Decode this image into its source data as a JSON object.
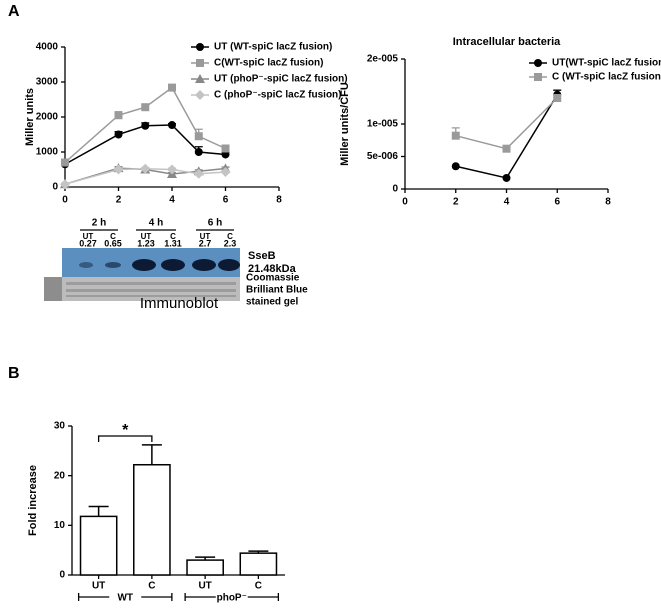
{
  "panels": [
    "A",
    "B"
  ],
  "chart_data": [
    {
      "type": "line",
      "ylabel": "Miller units",
      "x": [
        0,
        2,
        3,
        4,
        5,
        6
      ],
      "xlim": [
        0,
        8
      ],
      "xticks": [
        0,
        2,
        4,
        6,
        8
      ],
      "ylim": [
        0,
        4000
      ],
      "yticks": [
        0,
        1000,
        2000,
        3000,
        4000
      ],
      "legend": "upper right",
      "series": [
        {
          "name": "UT (WT-spiC lacZ fusion)",
          "color": "#000000",
          "marker": "circle",
          "values": [
            650,
            1500,
            1750,
            1770,
            1000,
            930
          ],
          "errors": [
            40,
            80,
            80,
            40,
            150,
            60
          ]
        },
        {
          "name": "C(WT-spiC lacZ fusion)",
          "color": "#9a9a9a",
          "marker": "square",
          "values": [
            700,
            2050,
            2280,
            2840,
            1450,
            1100
          ],
          "errors": [
            50,
            100,
            80,
            80,
            200,
            80
          ]
        },
        {
          "name": "UT (phoP⁻-spiC lacZ fusion)",
          "color": "#888888",
          "marker": "triangle",
          "values": [
            80,
            540,
            500,
            370,
            450,
            530
          ],
          "errors": [
            20,
            40,
            40,
            40,
            40,
            40
          ]
        },
        {
          "name": "C (phoP⁻-spiC lacZ fusion)",
          "color": "#c4c4c4",
          "marker": "diamond",
          "values": [
            80,
            500,
            520,
            500,
            380,
            430
          ],
          "errors": [
            20,
            40,
            40,
            40,
            40,
            40
          ]
        }
      ]
    },
    {
      "type": "line",
      "title": "Intracellular bacteria",
      "ylabel": "Miller units/CFU",
      "x": [
        2,
        4,
        6
      ],
      "xlim": [
        0,
        8
      ],
      "xticks": [
        0,
        2,
        4,
        6,
        8
      ],
      "ylim": [
        0,
        2e-05
      ],
      "yticks": [
        0,
        {
          "value": 5e-06,
          "label": "5e-006"
        },
        {
          "value": 1e-05,
          "label": "1e-005"
        },
        {
          "value": 2e-05,
          "label": "2e-005"
        }
      ],
      "legend": "upper right",
      "series": [
        {
          "name": "UT(WT-spiC lacZ fusion)",
          "color": "#000000",
          "marker": "circle",
          "values": [
            3.5e-06,
            1.7e-06,
            1.45e-05
          ],
          "errors": [
            0,
            0,
            7e-07
          ]
        },
        {
          "name": "C (WT-spiC lacZ fusion)",
          "color": "#9a9a9a",
          "marker": "square",
          "values": [
            8.2e-06,
            6.2e-06,
            1.4e-05
          ],
          "errors": [
            1.2e-06,
            0,
            5e-07
          ]
        }
      ]
    },
    {
      "type": "bar",
      "ylabel": "Fold increase",
      "categories": [
        "UT",
        "C",
        "UT",
        "C"
      ],
      "groups": [
        "WT",
        "phoP⁻"
      ],
      "values": [
        11.8,
        22.2,
        3.0,
        4.4
      ],
      "errors": [
        2.0,
        4.0,
        0.6,
        0.4
      ],
      "ylim": [
        0,
        30
      ],
      "yticks": [
        0,
        10,
        20,
        30
      ],
      "color": "#ffffff",
      "annotation": "*"
    }
  ],
  "blot": {
    "times": [
      "2 h",
      "4 h",
      "6 h"
    ],
    "lanes": [
      {
        "label": "UT",
        "value": 0.27
      },
      {
        "label": "C",
        "value": 0.65
      },
      {
        "label": "UT",
        "value": 1.23
      },
      {
        "label": "C",
        "value": 1.31
      },
      {
        "label": "UT",
        "value": 2.7
      },
      {
        "label": "C",
        "value": 2.3
      }
    ],
    "band_label": [
      "SseB",
      "21.48kDa"
    ],
    "gel_label": [
      "Coomassie",
      "Brilliant Blue",
      "stained gel"
    ],
    "caption": "Immunoblot"
  }
}
